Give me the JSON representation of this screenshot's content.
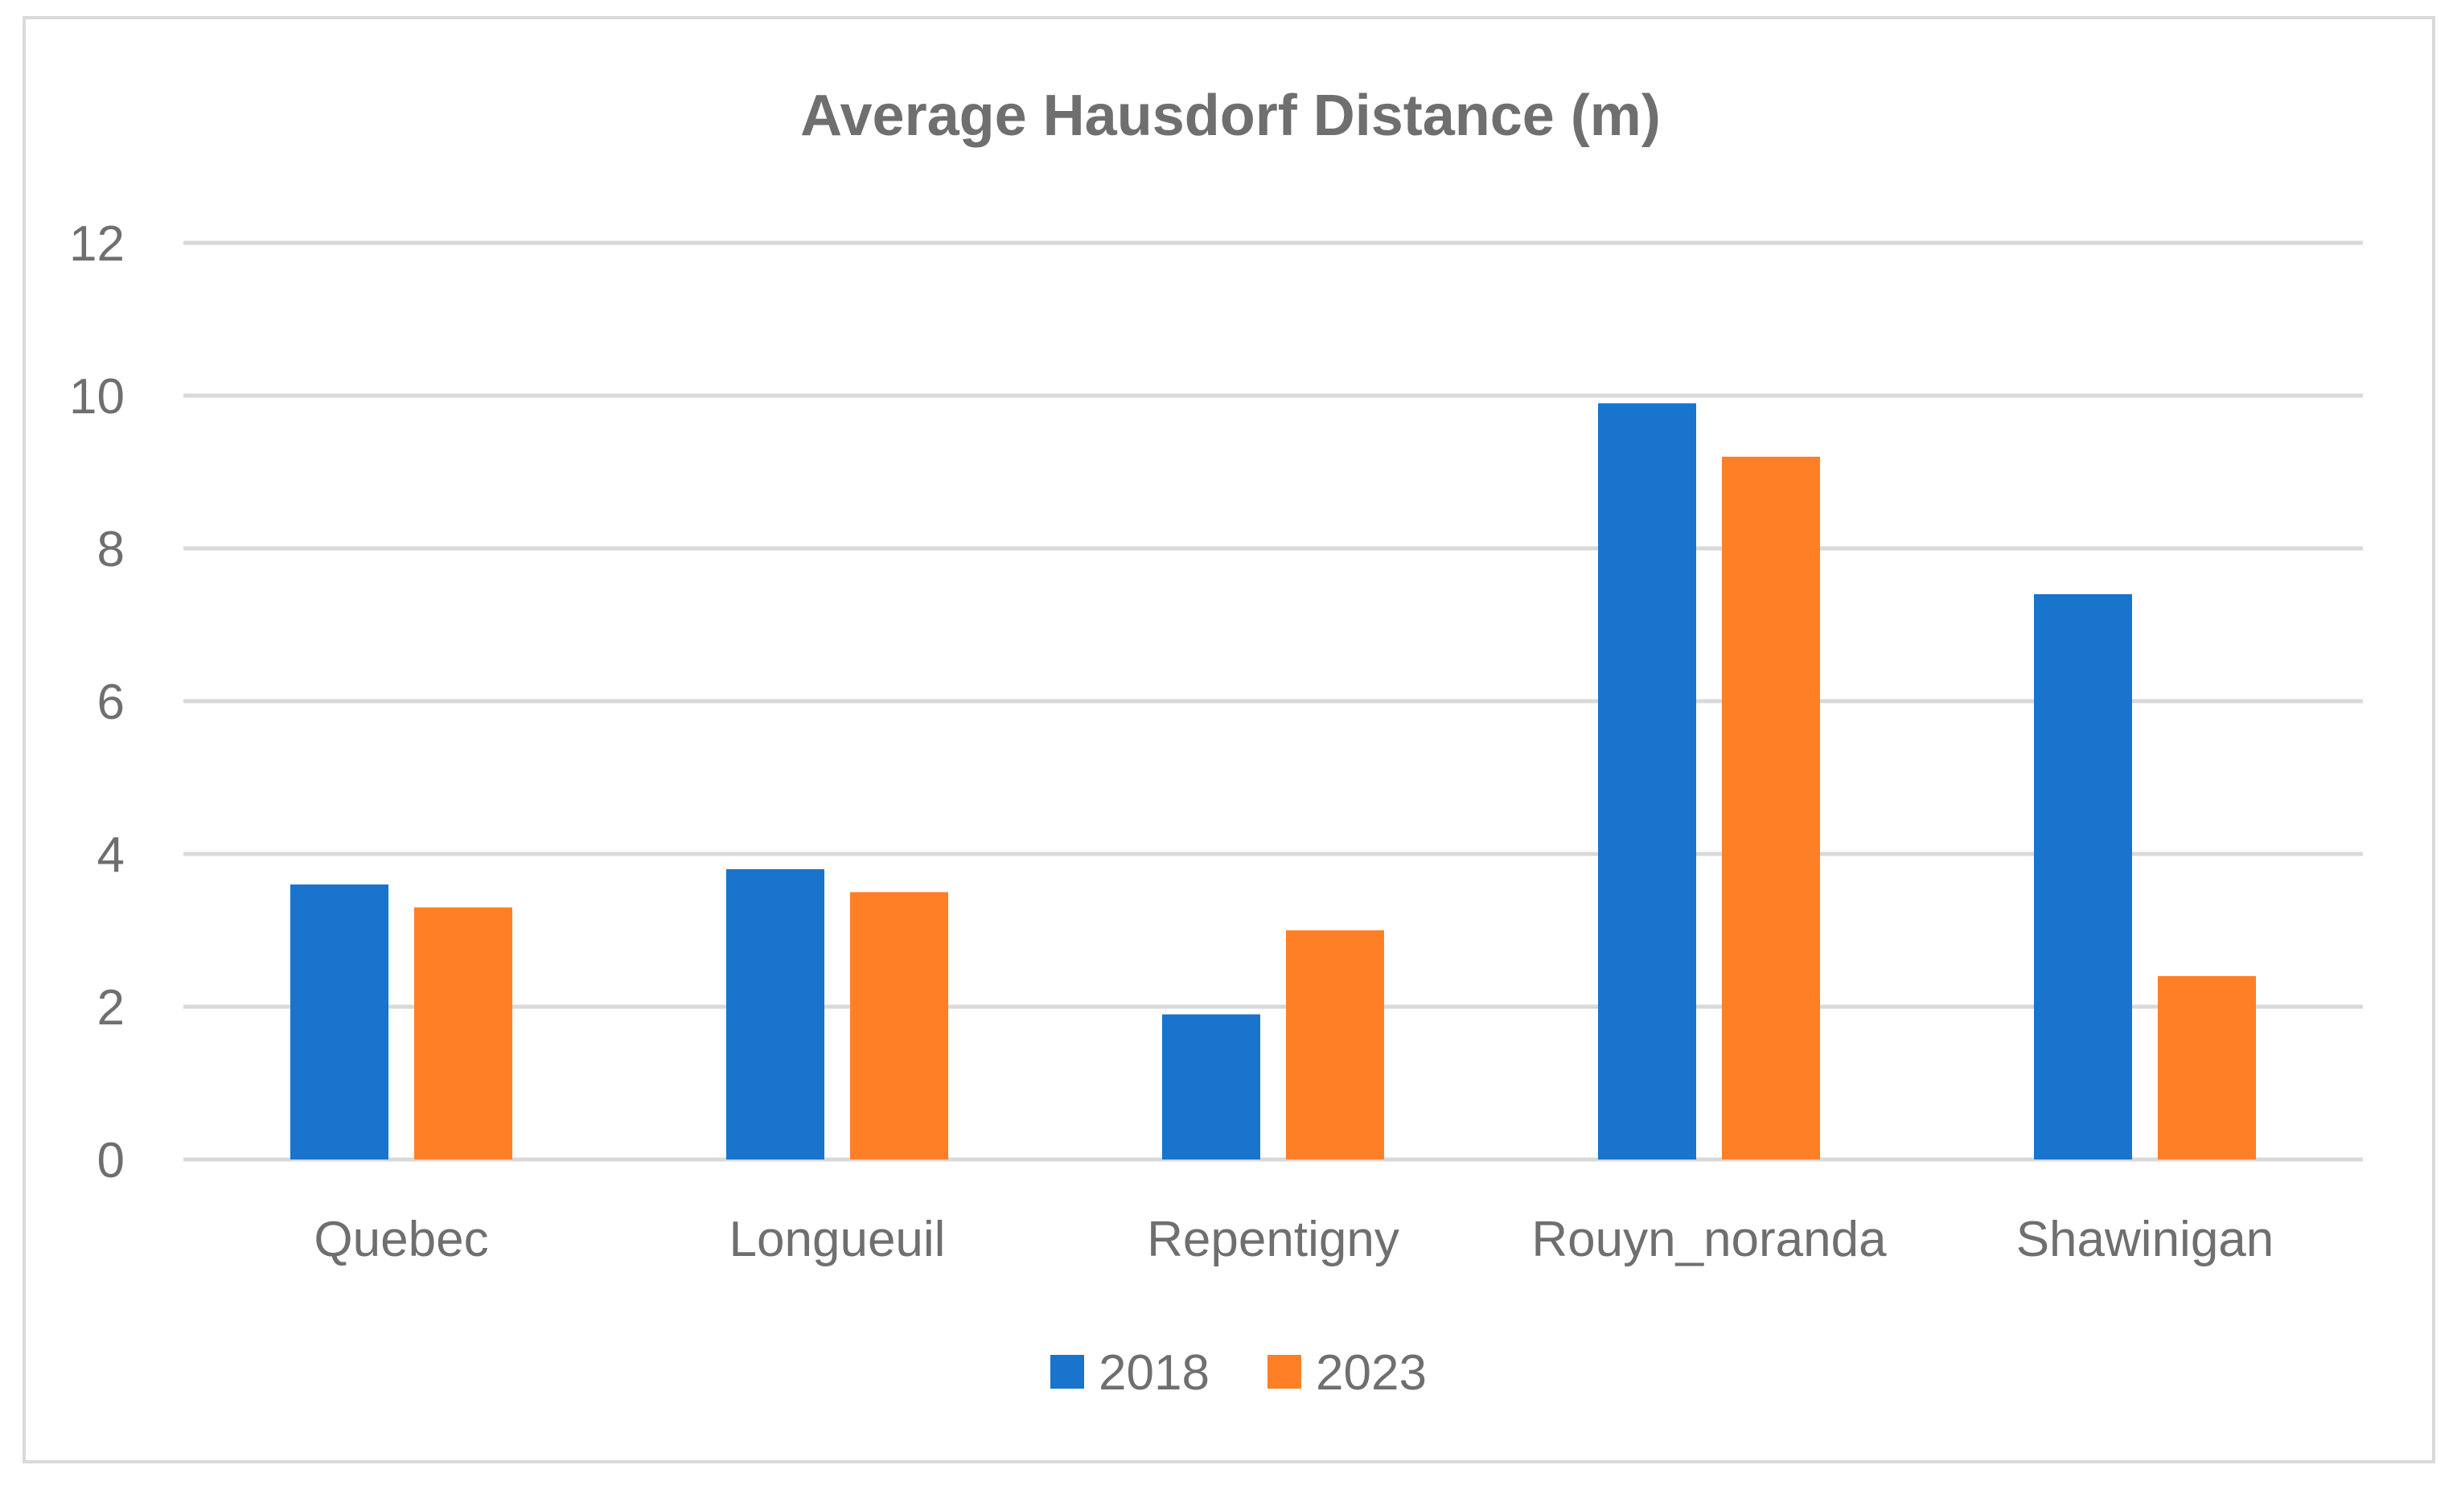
{
  "chart_data": {
    "type": "bar",
    "title": "Average Hausdorf Distance (m)",
    "xlabel": "",
    "ylabel": "",
    "categories": [
      "Quebec",
      "Longueuil",
      "Repentigny",
      "Rouyn_noranda",
      "Shawinigan"
    ],
    "series": [
      {
        "name": "2018",
        "color": "#1874cd",
        "values": [
          3.6,
          3.8,
          1.9,
          9.9,
          7.4
        ]
      },
      {
        "name": "2023",
        "color": "#ff7f27",
        "values": [
          3.3,
          3.5,
          3.0,
          9.2,
          2.4
        ]
      }
    ],
    "ylim": [
      0,
      12
    ],
    "yticks": [
      "0",
      "2",
      "4",
      "6",
      "8",
      "10",
      "12"
    ],
    "grid": true,
    "legend_position": "bottom"
  }
}
